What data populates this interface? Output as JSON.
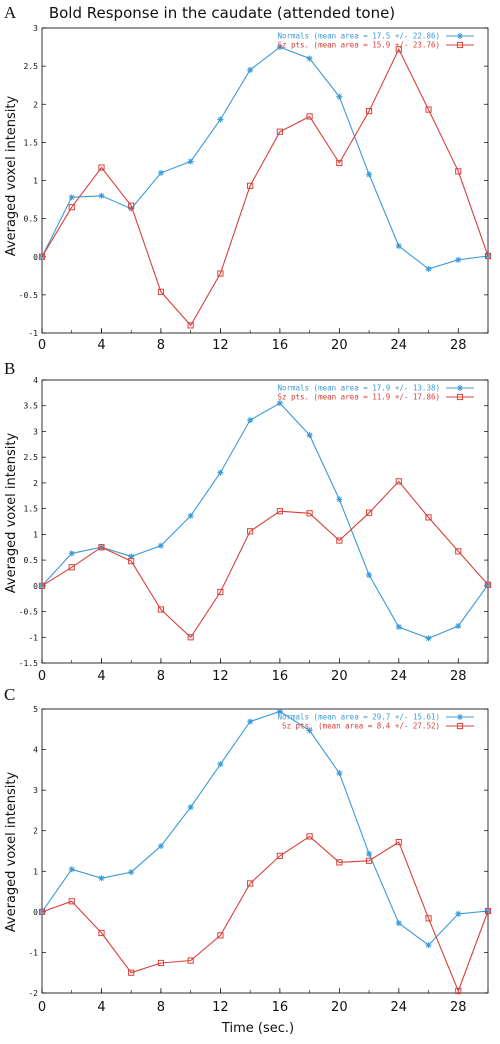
{
  "figure": {
    "title": "Bold Response in the caudate (attended tone)",
    "xlabel": "Time (sec.)"
  },
  "colors": {
    "normals": "#3b9ad9",
    "sz": "#d9403a"
  },
  "chart_data": [
    {
      "type": "line",
      "panel_label": "A",
      "ylabel": "Averaged voxel intensity",
      "xlim": [
        0,
        30
      ],
      "ylim": [
        -1,
        3
      ],
      "x_ticks": [
        0,
        4,
        8,
        12,
        16,
        20,
        24,
        28
      ],
      "y_ticks": [
        "-1",
        "-0.5",
        "0",
        "0.5",
        "1",
        "1.5",
        "2",
        "2.5",
        "3"
      ],
      "x": [
        0,
        2,
        4,
        6,
        8,
        10,
        12,
        14,
        16,
        18,
        20,
        22,
        24,
        26,
        28,
        30
      ],
      "series": [
        {
          "name": "Normals (mean area = 17.5 +/- 22.86)",
          "marker": "star",
          "color": "#3b9ad9",
          "values": [
            0,
            0.78,
            0.8,
            0.63,
            1.1,
            1.25,
            1.8,
            2.45,
            2.75,
            2.6,
            2.1,
            1.08,
            0.14,
            -0.16,
            -0.04,
            0.01
          ]
        },
        {
          "name": "Sz pts. (mean area = 15.9 +/- 23.76)",
          "marker": "square",
          "color": "#d9403a",
          "values": [
            0,
            0.65,
            1.17,
            0.67,
            -0.46,
            -0.9,
            -0.22,
            0.93,
            1.64,
            1.84,
            1.23,
            1.91,
            2.72,
            1.93,
            1.12,
            0.01
          ]
        }
      ]
    },
    {
      "type": "line",
      "panel_label": "B",
      "ylabel": "Averaged voxel intensity",
      "xlim": [
        0,
        30
      ],
      "ylim": [
        -1.5,
        4
      ],
      "x_ticks": [
        0,
        4,
        8,
        12,
        16,
        20,
        24,
        28
      ],
      "y_ticks": [
        "-1.5",
        "-1",
        "-0.5",
        "0",
        "0.5",
        "1",
        "1.5",
        "2",
        "2.5",
        "3",
        "3.5",
        "4"
      ],
      "x": [
        0,
        2,
        4,
        6,
        8,
        10,
        12,
        14,
        16,
        18,
        20,
        22,
        24,
        26,
        28,
        30
      ],
      "series": [
        {
          "name": "Normals (mean area = 17.9 +/- 13.38)",
          "marker": "star",
          "color": "#3b9ad9",
          "values": [
            0,
            0.63,
            0.75,
            0.57,
            0.78,
            1.36,
            2.2,
            3.22,
            3.55,
            2.93,
            1.68,
            0.21,
            -0.8,
            -1.02,
            -0.78,
            0.02
          ]
        },
        {
          "name": "Sz pts. (mean area = 11.9 +/- 17.86)",
          "marker": "square",
          "color": "#d9403a",
          "values": [
            0,
            0.36,
            0.75,
            0.48,
            -0.46,
            -1.0,
            -0.12,
            1.06,
            1.45,
            1.41,
            0.88,
            1.42,
            2.03,
            1.33,
            0.67,
            0.02
          ]
        }
      ]
    },
    {
      "type": "line",
      "panel_label": "C",
      "ylabel": "Averaged voxel intensity",
      "xlim": [
        0,
        30
      ],
      "ylim": [
        -2,
        5
      ],
      "x_ticks": [
        0,
        4,
        8,
        12,
        16,
        20,
        24,
        28
      ],
      "y_ticks": [
        "-2",
        "-1",
        "0",
        "1",
        "2",
        "3",
        "4",
        "5"
      ],
      "x": [
        0,
        2,
        4,
        6,
        8,
        10,
        12,
        14,
        16,
        18,
        20,
        22,
        24,
        26,
        28,
        30
      ],
      "series": [
        {
          "name": "Normals (mean area = 29.7 +/- 15.61)",
          "marker": "star",
          "color": "#3b9ad9",
          "values": [
            0,
            1.05,
            0.83,
            0.98,
            1.62,
            2.58,
            3.64,
            4.69,
            4.94,
            4.47,
            3.42,
            1.43,
            -0.28,
            -0.82,
            -0.05,
            0.02
          ]
        },
        {
          "name": "Sz pts.  (mean area =  8.4 +/- 27.52)",
          "marker": "square",
          "color": "#d9403a",
          "values": [
            0,
            0.26,
            -0.52,
            -1.5,
            -1.26,
            -1.2,
            -0.58,
            0.7,
            1.38,
            1.86,
            1.22,
            1.26,
            1.72,
            -0.16,
            -1.95,
            0.02
          ]
        }
      ]
    }
  ]
}
